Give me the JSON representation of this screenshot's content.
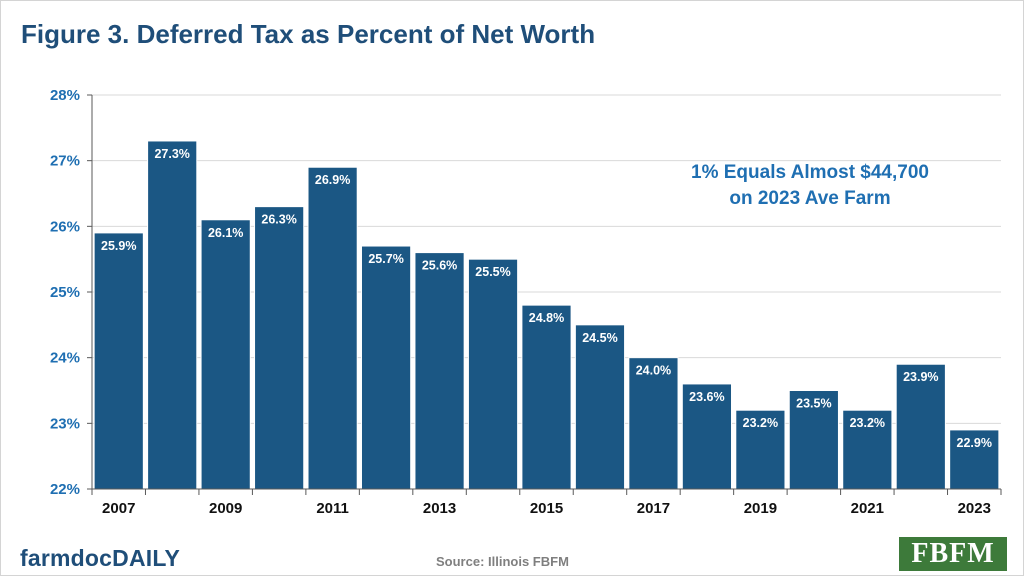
{
  "title": "Figure 3. Deferred Tax as Percent of Net Worth",
  "annotation": {
    "line1": "1% Equals Almost $44,700",
    "line2": "on 2023 Ave Farm"
  },
  "footer": {
    "brand": "farmdocDAILY",
    "source": "Source: Illinois FBFM",
    "logo_text": "FBFM"
  },
  "colors": {
    "bar": "#1b5784",
    "title": "#1f4e79",
    "axis_text": "#1f6fb2",
    "annotation": "#1f6fb2"
  },
  "chart_data": {
    "type": "bar",
    "categories": [
      "2007",
      "2008",
      "2009",
      "2010",
      "2011",
      "2012",
      "2013",
      "2014",
      "2015",
      "2016",
      "2017",
      "2018",
      "2019",
      "2020",
      "2021",
      "2022",
      "2023"
    ],
    "values": [
      25.9,
      27.3,
      26.1,
      26.3,
      26.9,
      25.7,
      25.6,
      25.5,
      24.8,
      24.5,
      24.0,
      23.6,
      23.2,
      23.5,
      23.2,
      23.9,
      22.9
    ],
    "data_labels": [
      "25.9%",
      "27.3%",
      "26.1%",
      "26.3%",
      "26.9%",
      "25.7%",
      "25.6%",
      "25.5%",
      "24.8%",
      "24.5%",
      "24.0%",
      "23.6%",
      "23.2%",
      "23.5%",
      "23.2%",
      "23.9%",
      "22.9%"
    ],
    "x_tick_labels": [
      "2007",
      "",
      "2009",
      "",
      "2011",
      "",
      "2013",
      "",
      "2015",
      "",
      "2017",
      "",
      "2019",
      "",
      "2021",
      "",
      "2023"
    ],
    "y_ticks": [
      22,
      23,
      24,
      25,
      26,
      27,
      28
    ],
    "y_tick_labels": [
      "22%",
      "23%",
      "24%",
      "25%",
      "26%",
      "27%",
      "28%"
    ],
    "ylim": [
      22,
      28
    ],
    "title": "Figure 3. Deferred Tax as Percent of Net Worth",
    "xlabel": "",
    "ylabel": "",
    "grid": true
  }
}
